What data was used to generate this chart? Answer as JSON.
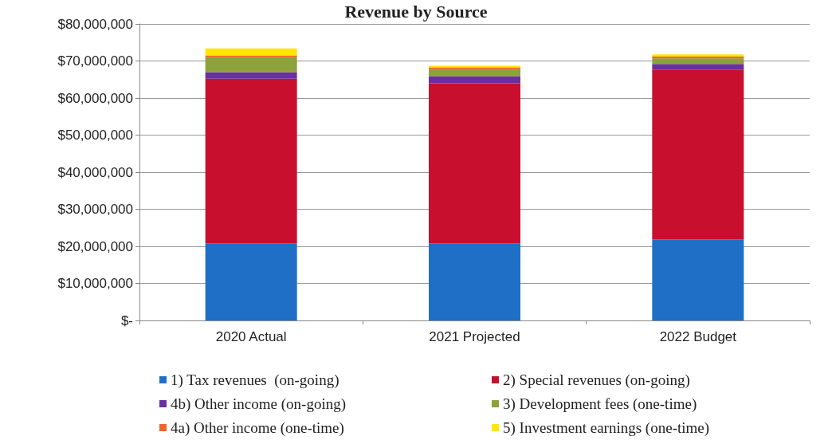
{
  "chart_data": {
    "type": "bar",
    "title": "Revenue by Source",
    "stacked": true,
    "grid": "y",
    "legend": "bottom",
    "categories": [
      "2020 Actual",
      "2021 Projected",
      "2022 Budget"
    ],
    "ylim": [
      0,
      80000000
    ],
    "yticks": [
      {
        "value": 0,
        "label": "$-"
      },
      {
        "value": 10000000,
        "label": "$10,000,000"
      },
      {
        "value": 20000000,
        "label": "$20,000,000"
      },
      {
        "value": 30000000,
        "label": "$30,000,000"
      },
      {
        "value": 40000000,
        "label": "$40,000,000"
      },
      {
        "value": 50000000,
        "label": "$50,000,000"
      },
      {
        "value": 60000000,
        "label": "$60,000,000"
      },
      {
        "value": 70000000,
        "label": "$70,000,000"
      },
      {
        "value": 80000000,
        "label": "$80,000,000"
      }
    ],
    "series": [
      {
        "name": "1) Tax revenues  (on-going)",
        "color": "#1f6fc6",
        "values": [
          20800000,
          20800000,
          21900000
        ]
      },
      {
        "name": "2) Special revenues (on-going)",
        "color": "#c8102e",
        "values": [
          44400000,
          43200000,
          45800000
        ]
      },
      {
        "name": "4b) Other income (on-going)",
        "color": "#6a2fa0",
        "values": [
          1800000,
          1900000,
          1500000
        ]
      },
      {
        "name": "3) Development fees (one-time)",
        "color": "#8ca23a",
        "values": [
          4000000,
          1900000,
          1500000
        ]
      },
      {
        "name": "4a) Other income (one-time)",
        "color": "#f0642a",
        "values": [
          500000,
          500000,
          500000
        ]
      },
      {
        "name": "5) Investment earnings (one-time)",
        "color": "#ffe600",
        "values": [
          1900000,
          400000,
          600000
        ]
      }
    ]
  }
}
